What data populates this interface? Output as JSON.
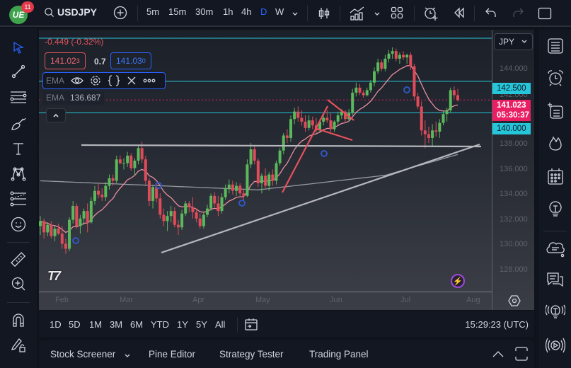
{
  "app": {
    "logo_text": "UE",
    "notification_count": "11",
    "symbol": "USDJPY"
  },
  "toolbar": {
    "intervals": [
      "5m",
      "15m",
      "30m",
      "1h",
      "4h",
      "D",
      "W"
    ],
    "active_interval": "D",
    "icons": [
      "add-symbol-icon",
      "candles-chart-type-icon",
      "indicators-icon",
      "layout-grid-icon",
      "alert-add-icon",
      "replay-icon",
      "undo-icon",
      "redo-icon",
      "fullscreen-icon"
    ]
  },
  "legend": {
    "change": "-0.449 (-0.32%)",
    "sell_price_main": "141.02",
    "sell_price_pip": "3",
    "spread": "0.7",
    "buy_price_main": "141.03",
    "buy_price_pip": "0",
    "indicator_short": "EMA",
    "indicator_value_label": "EMA",
    "indicator_value": "136.687"
  },
  "price_axis": {
    "currency": "JPY",
    "labels": [
      "144.000",
      "142.000",
      "138.000",
      "136.000",
      "134.000",
      "132.000",
      "130.000",
      "128.000"
    ],
    "tag_upper": "142.500",
    "tag_current_price": "141.023",
    "tag_countdown": "05:30:37",
    "tag_lower": "140.000",
    "colors": {
      "cyan": "#26c6da",
      "current": "#e91e63"
    }
  },
  "time_axis": {
    "labels": [
      "Feb",
      "Mar",
      "Apr",
      "May",
      "Jun",
      "Jul",
      "Aug"
    ]
  },
  "range_bar": {
    "ranges": [
      "1D",
      "5D",
      "1M",
      "3M",
      "6M",
      "YTD",
      "1Y",
      "5Y",
      "All"
    ],
    "clock": "15:29:23 (UTC)"
  },
  "bottom_panel": {
    "tabs": [
      "Stock Screener",
      "Pine Editor",
      "Strategy Tester",
      "Trading Panel"
    ]
  },
  "left_tools": [
    "cursor-icon",
    "trend-line-icon",
    "horizontal-lines-icon",
    "brush-icon",
    "text-icon",
    "pattern-icon",
    "fib-icon",
    "emoji-icon",
    "ruler-icon",
    "zoom-in-icon",
    "magnet-icon",
    "lock-drawings-icon"
  ],
  "right_tools": [
    "watchlist-icon",
    "alerts-icon",
    "data-window-icon",
    "hotlist-icon",
    "calendar-icon",
    "ideas-icon",
    "chats-icon",
    "messages-icon",
    "tips-icon",
    "streams-icon"
  ],
  "chart": {
    "colors": {
      "up": "#5cb85c",
      "down": "#e04b5a",
      "ema": "#e88ea0",
      "sma": "#9598a1",
      "levels": "#26c6da",
      "trendline": "#b5b7bd",
      "pattern": "#e8505b"
    },
    "y_top_price": 146.6,
    "y_bottom_price": 125.8,
    "candles": [
      [
        131.0,
        131.8,
        130.3,
        131.4
      ],
      [
        131.4,
        131.6,
        130.0,
        130.5
      ],
      [
        130.5,
        131.3,
        130.2,
        131.1
      ],
      [
        131.1,
        131.4,
        130.0,
        130.2
      ],
      [
        130.2,
        131.0,
        129.8,
        130.8
      ],
      [
        130.8,
        131.2,
        130.3,
        130.4
      ],
      [
        130.4,
        131.0,
        129.2,
        129.6
      ],
      [
        129.6,
        130.0,
        128.8,
        129.2
      ],
      [
        129.2,
        131.7,
        129.0,
        131.5
      ],
      [
        131.5,
        133.0,
        131.2,
        132.6
      ],
      [
        132.6,
        132.8,
        130.8,
        131.0
      ],
      [
        131.0,
        131.9,
        130.4,
        131.6
      ],
      [
        131.6,
        132.4,
        131.1,
        132.2
      ],
      [
        132.2,
        132.8,
        130.5,
        131.3
      ],
      [
        131.3,
        133.3,
        131.2,
        133.0
      ],
      [
        133.0,
        134.2,
        132.7,
        133.8
      ],
      [
        133.8,
        134.4,
        133.2,
        133.5
      ],
      [
        133.5,
        134.0,
        133.0,
        133.3
      ],
      [
        133.3,
        134.5,
        133.0,
        134.2
      ],
      [
        134.2,
        135.1,
        133.9,
        134.8
      ],
      [
        134.8,
        135.1,
        134.2,
        134.6
      ],
      [
        134.6,
        136.6,
        134.4,
        136.3
      ],
      [
        136.3,
        136.6,
        135.9,
        136.0
      ],
      [
        136.0,
        136.4,
        135.5,
        136.0
      ],
      [
        136.0,
        136.9,
        135.7,
        136.6
      ],
      [
        136.6,
        136.8,
        135.4,
        135.6
      ],
      [
        135.6,
        136.4,
        135.0,
        136.2
      ],
      [
        136.2,
        137.4,
        135.9,
        137.2
      ],
      [
        137.2,
        137.7,
        136.0,
        136.3
      ],
      [
        136.3,
        136.6,
        134.3,
        134.6
      ],
      [
        134.6,
        134.8,
        132.6,
        133.0
      ],
      [
        133.0,
        134.3,
        132.4,
        134.1
      ],
      [
        134.1,
        134.4,
        132.9,
        133.2
      ],
      [
        133.2,
        133.6,
        131.6,
        131.9
      ],
      [
        131.9,
        132.4,
        131.0,
        131.4
      ],
      [
        131.4,
        132.2,
        130.6,
        131.8
      ],
      [
        131.8,
        132.6,
        131.3,
        132.2
      ],
      [
        132.2,
        132.5,
        130.9,
        131.1
      ],
      [
        131.1,
        131.5,
        130.3,
        130.9
      ],
      [
        130.9,
        132.3,
        130.7,
        132.0
      ],
      [
        132.0,
        133.0,
        131.8,
        132.8
      ],
      [
        132.8,
        133.0,
        132.1,
        132.5
      ],
      [
        132.5,
        133.3,
        131.6,
        132.1
      ],
      [
        132.1,
        132.4,
        131.3,
        131.6
      ],
      [
        131.6,
        132.0,
        130.8,
        131.0
      ],
      [
        131.0,
        132.1,
        130.8,
        131.9
      ],
      [
        131.9,
        132.7,
        131.7,
        132.4
      ],
      [
        132.4,
        133.6,
        132.2,
        133.4
      ],
      [
        133.4,
        133.7,
        132.5,
        132.8
      ],
      [
        132.8,
        133.4,
        131.8,
        132.2
      ],
      [
        132.2,
        133.6,
        132.0,
        133.3
      ],
      [
        133.3,
        134.3,
        133.1,
        134.0
      ],
      [
        134.0,
        134.7,
        133.6,
        134.3
      ],
      [
        134.3,
        134.6,
        133.5,
        133.8
      ],
      [
        133.8,
        134.5,
        133.4,
        134.2
      ],
      [
        134.2,
        134.4,
        133.3,
        133.6
      ],
      [
        133.6,
        134.0,
        133.0,
        133.4
      ],
      [
        133.4,
        136.3,
        133.3,
        135.9
      ],
      [
        135.9,
        137.6,
        135.6,
        137.1
      ],
      [
        137.1,
        137.4,
        135.9,
        136.2
      ],
      [
        136.2,
        136.4,
        134.1,
        134.4
      ],
      [
        134.4,
        135.2,
        133.6,
        135.0
      ],
      [
        135.0,
        135.6,
        134.0,
        134.2
      ],
      [
        134.2,
        135.3,
        133.8,
        135.1
      ],
      [
        135.1,
        135.5,
        134.2,
        134.6
      ],
      [
        134.6,
        136.2,
        134.3,
        136.0
      ],
      [
        136.0,
        137.2,
        135.8,
        137.0
      ],
      [
        137.0,
        138.4,
        136.7,
        138.2
      ],
      [
        138.2,
        138.7,
        137.6,
        138.0
      ],
      [
        138.0,
        139.8,
        137.7,
        139.5
      ],
      [
        139.5,
        140.4,
        139.1,
        140.1
      ],
      [
        140.1,
        140.5,
        139.3,
        139.6
      ],
      [
        139.6,
        140.2,
        139.0,
        139.3
      ],
      [
        139.3,
        139.8,
        138.5,
        138.8
      ],
      [
        138.8,
        139.8,
        138.6,
        139.4
      ],
      [
        139.4,
        139.7,
        138.7,
        139.0
      ],
      [
        139.0,
        139.6,
        138.4,
        138.6
      ],
      [
        138.6,
        139.5,
        138.4,
        139.3
      ],
      [
        139.3,
        139.9,
        139.0,
        139.6
      ],
      [
        139.6,
        140.2,
        139.2,
        139.4
      ],
      [
        139.4,
        140.0,
        138.5,
        138.7
      ],
      [
        138.7,
        139.4,
        138.5,
        139.3
      ],
      [
        139.3,
        140.1,
        139.0,
        139.8
      ],
      [
        139.8,
        140.3,
        139.5,
        140.1
      ],
      [
        140.1,
        140.2,
        139.2,
        139.5
      ],
      [
        139.5,
        140.3,
        139.3,
        140.0
      ],
      [
        140.0,
        141.9,
        139.8,
        141.6
      ],
      [
        141.6,
        142.4,
        141.3,
        142.0
      ],
      [
        142.0,
        142.3,
        141.4,
        141.6
      ],
      [
        141.6,
        141.8,
        141.2,
        141.4
      ],
      [
        141.4,
        142.0,
        141.3,
        141.8
      ],
      [
        141.8,
        142.6,
        141.6,
        142.4
      ],
      [
        142.4,
        143.6,
        142.1,
        143.3
      ],
      [
        143.3,
        144.3,
        143.1,
        144.0
      ],
      [
        144.0,
        144.2,
        143.3,
        143.5
      ],
      [
        143.5,
        144.6,
        143.3,
        144.3
      ],
      [
        144.3,
        145.0,
        144.0,
        144.7
      ],
      [
        144.7,
        145.2,
        144.3,
        144.9
      ],
      [
        144.9,
        145.1,
        144.1,
        144.3
      ],
      [
        144.3,
        144.8,
        143.9,
        144.6
      ],
      [
        144.6,
        144.9,
        144.2,
        144.4
      ],
      [
        144.4,
        144.7,
        143.9,
        144.6
      ],
      [
        144.6,
        144.8,
        143.4,
        143.7
      ],
      [
        143.7,
        143.9,
        141.0,
        141.3
      ],
      [
        141.3,
        141.6,
        140.3,
        140.5
      ],
      [
        140.5,
        140.9,
        138.2,
        138.6
      ],
      [
        138.6,
        139.4,
        137.2,
        138.3
      ],
      [
        138.3,
        138.9,
        137.6,
        138.0
      ],
      [
        138.0,
        139.1,
        137.3,
        138.6
      ],
      [
        138.6,
        139.3,
        138.1,
        138.5
      ],
      [
        138.5,
        139.5,
        138.0,
        139.2
      ],
      [
        139.2,
        140.1,
        139.0,
        139.9
      ],
      [
        139.9,
        140.4,
        139.3,
        140.2
      ],
      [
        140.2,
        142.0,
        140.0,
        141.8
      ],
      [
        141.8,
        142.1,
        141.1,
        141.4
      ],
      [
        141.4,
        141.9,
        140.9,
        141.0
      ]
    ]
  }
}
